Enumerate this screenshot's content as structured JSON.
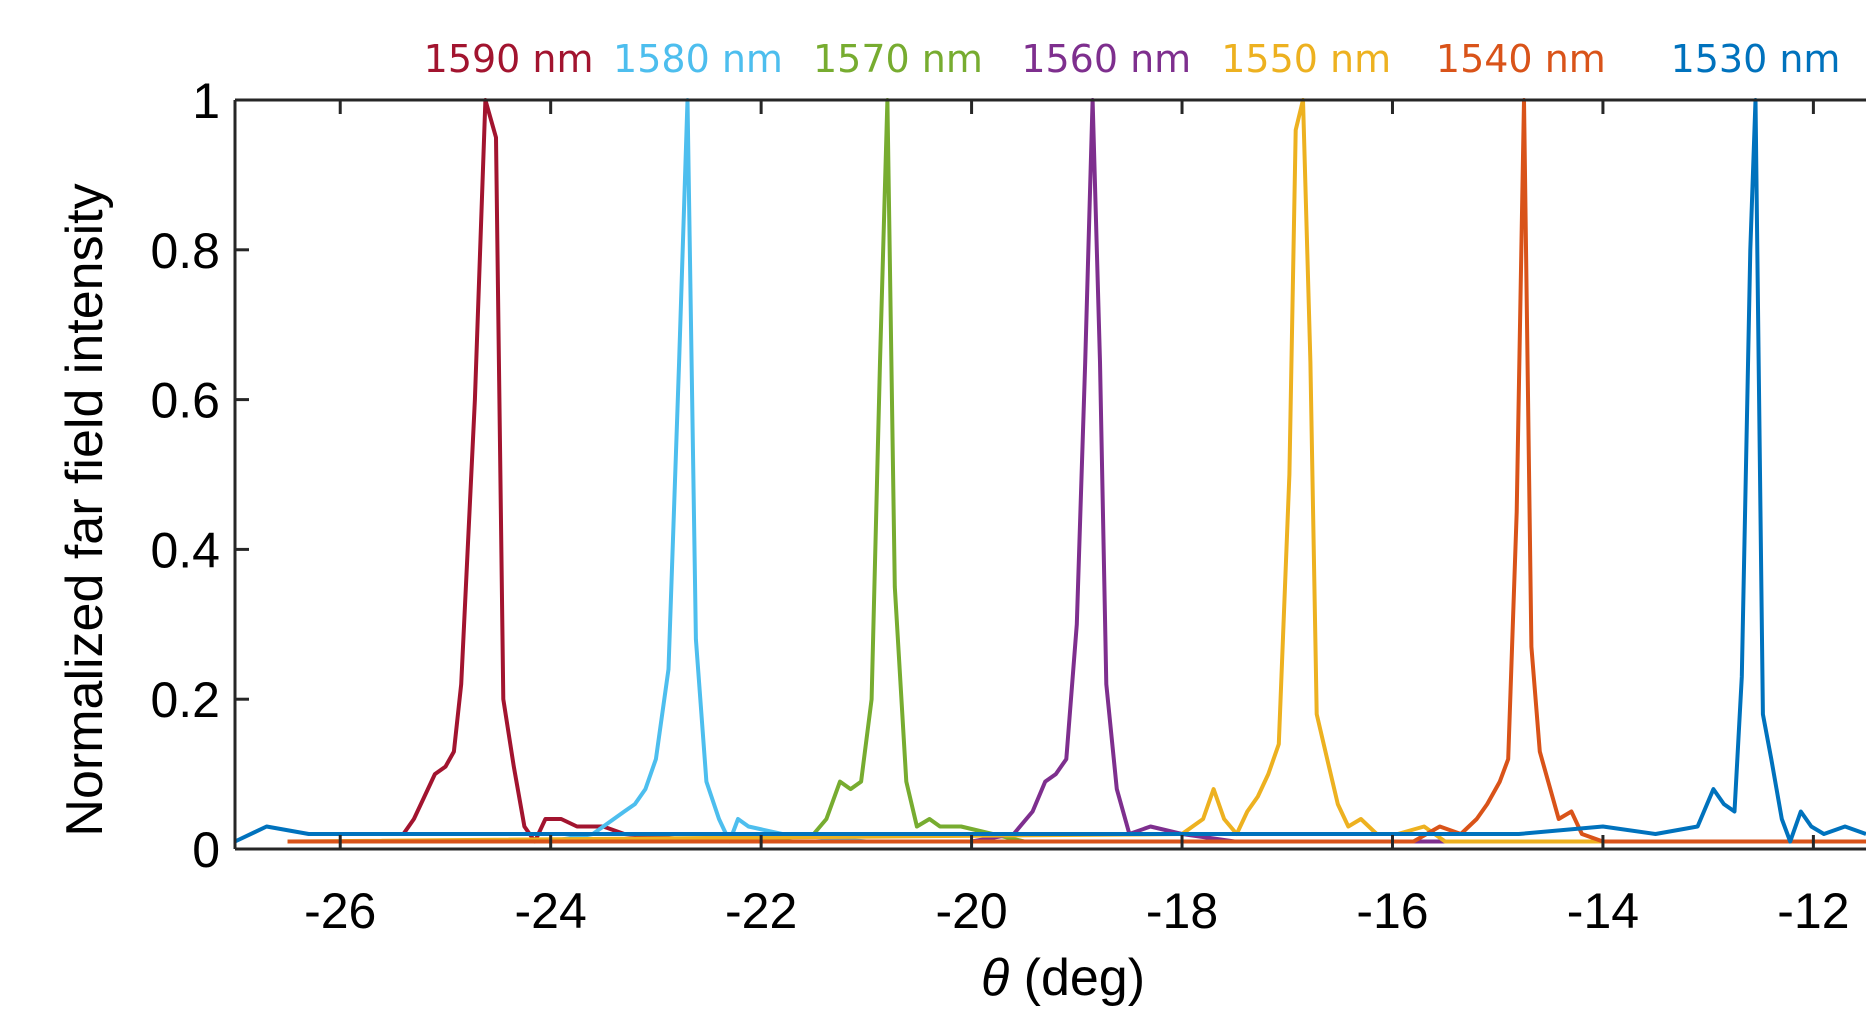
{
  "chart_data": {
    "type": "line",
    "title": "",
    "xlabel_symbol": "θ",
    "xlabel_unit": " (deg)",
    "ylabel": "Normalized far field intensity",
    "xlim": [
      -27,
      -11.5
    ],
    "ylim": [
      0,
      1
    ],
    "xticks": [
      -26,
      -24,
      -22,
      -20,
      -18,
      -16,
      -14,
      -12
    ],
    "xtick_labels": [
      "-26",
      "-24",
      "-22",
      "-20",
      "-18",
      "-16",
      "-14",
      "-12"
    ],
    "yticks": [
      0,
      0.2,
      0.4,
      0.6,
      0.8,
      1
    ],
    "ytick_labels": [
      "0",
      "0.2",
      "0.4",
      "0.6",
      "0.8",
      "1"
    ],
    "grid": false,
    "legend_position": "top",
    "series": [
      {
        "name": "1590 nm",
        "color": "#A2142F",
        "points": [
          [
            -26.0,
            0.02
          ],
          [
            -25.7,
            0.02
          ],
          [
            -25.4,
            0.02
          ],
          [
            -25.3,
            0.04
          ],
          [
            -25.2,
            0.07
          ],
          [
            -25.1,
            0.1
          ],
          [
            -25.0,
            0.11
          ],
          [
            -24.92,
            0.13
          ],
          [
            -24.85,
            0.22
          ],
          [
            -24.72,
            0.6
          ],
          [
            -24.62,
            1.0
          ],
          [
            -24.52,
            0.95
          ],
          [
            -24.45,
            0.2
          ],
          [
            -24.35,
            0.11
          ],
          [
            -24.25,
            0.03
          ],
          [
            -24.15,
            0.01
          ],
          [
            -24.05,
            0.04
          ],
          [
            -23.9,
            0.04
          ],
          [
            -23.75,
            0.03
          ],
          [
            -23.5,
            0.03
          ],
          [
            -23.3,
            0.02
          ],
          [
            -22.5,
            0.01
          ],
          [
            -21.0,
            0.01
          ],
          [
            -19.0,
            0.01
          ],
          [
            -17.0,
            0.01
          ],
          [
            -15.0,
            0.01
          ],
          [
            -13.0,
            0.01
          ],
          [
            -11.5,
            0.01
          ]
        ]
      },
      {
        "name": "1580 nm",
        "color": "#4DBEEE",
        "points": [
          [
            -26.5,
            0.01
          ],
          [
            -24.0,
            0.01
          ],
          [
            -23.6,
            0.02
          ],
          [
            -23.4,
            0.04
          ],
          [
            -23.3,
            0.05
          ],
          [
            -23.2,
            0.06
          ],
          [
            -23.1,
            0.08
          ],
          [
            -23.0,
            0.12
          ],
          [
            -22.88,
            0.24
          ],
          [
            -22.78,
            0.65
          ],
          [
            -22.7,
            1.0
          ],
          [
            -22.62,
            0.28
          ],
          [
            -22.52,
            0.09
          ],
          [
            -22.4,
            0.04
          ],
          [
            -22.3,
            0.01
          ],
          [
            -22.22,
            0.04
          ],
          [
            -22.12,
            0.03
          ],
          [
            -21.8,
            0.02
          ],
          [
            -21.0,
            0.01
          ],
          [
            -19.0,
            0.01
          ],
          [
            -16.0,
            0.01
          ],
          [
            -13.0,
            0.01
          ],
          [
            -11.5,
            0.01
          ]
        ]
      },
      {
        "name": "1570 nm",
        "color": "#77AC30",
        "points": [
          [
            -26.5,
            0.01
          ],
          [
            -22.0,
            0.01
          ],
          [
            -21.5,
            0.02
          ],
          [
            -21.38,
            0.04
          ],
          [
            -21.25,
            0.09
          ],
          [
            -21.15,
            0.08
          ],
          [
            -21.05,
            0.09
          ],
          [
            -20.95,
            0.2
          ],
          [
            -20.87,
            0.65
          ],
          [
            -20.8,
            1.0
          ],
          [
            -20.73,
            0.35
          ],
          [
            -20.62,
            0.09
          ],
          [
            -20.52,
            0.03
          ],
          [
            -20.4,
            0.04
          ],
          [
            -20.3,
            0.03
          ],
          [
            -20.1,
            0.03
          ],
          [
            -19.8,
            0.02
          ],
          [
            -19.5,
            0.01
          ],
          [
            -17.0,
            0.01
          ],
          [
            -14.0,
            0.01
          ],
          [
            -11.5,
            0.01
          ]
        ]
      },
      {
        "name": "1560 nm",
        "color": "#7E2F8E",
        "points": [
          [
            -26.5,
            0.01
          ],
          [
            -20.0,
            0.01
          ],
          [
            -19.6,
            0.02
          ],
          [
            -19.42,
            0.05
          ],
          [
            -19.3,
            0.09
          ],
          [
            -19.2,
            0.1
          ],
          [
            -19.1,
            0.12
          ],
          [
            -19.0,
            0.3
          ],
          [
            -18.92,
            0.65
          ],
          [
            -18.85,
            1.0
          ],
          [
            -18.78,
            0.65
          ],
          [
            -18.72,
            0.22
          ],
          [
            -18.62,
            0.08
          ],
          [
            -18.5,
            0.02
          ],
          [
            -18.3,
            0.03
          ],
          [
            -18.0,
            0.02
          ],
          [
            -17.5,
            0.01
          ],
          [
            -15.0,
            0.01
          ],
          [
            -12.0,
            0.01
          ],
          [
            -11.5,
            0.01
          ]
        ]
      },
      {
        "name": "1550 nm",
        "color": "#EDB120",
        "points": [
          [
            -26.5,
            0.01
          ],
          [
            -18.0,
            0.02
          ],
          [
            -17.8,
            0.04
          ],
          [
            -17.7,
            0.08
          ],
          [
            -17.6,
            0.04
          ],
          [
            -17.48,
            0.02
          ],
          [
            -17.38,
            0.05
          ],
          [
            -17.28,
            0.07
          ],
          [
            -17.18,
            0.1
          ],
          [
            -17.08,
            0.14
          ],
          [
            -16.98,
            0.5
          ],
          [
            -16.92,
            0.96
          ],
          [
            -16.85,
            1.0
          ],
          [
            -16.78,
            0.65
          ],
          [
            -16.72,
            0.18
          ],
          [
            -16.62,
            0.12
          ],
          [
            -16.52,
            0.06
          ],
          [
            -16.42,
            0.03
          ],
          [
            -16.3,
            0.04
          ],
          [
            -16.15,
            0.02
          ],
          [
            -15.95,
            0.02
          ],
          [
            -15.7,
            0.03
          ],
          [
            -15.5,
            0.01
          ],
          [
            -13.0,
            0.01
          ],
          [
            -11.5,
            0.01
          ]
        ]
      },
      {
        "name": "1540 nm",
        "color": "#D95319",
        "points": [
          [
            -26.5,
            0.01
          ],
          [
            -16.0,
            0.01
          ],
          [
            -15.8,
            0.01
          ],
          [
            -15.55,
            0.03
          ],
          [
            -15.35,
            0.02
          ],
          [
            -15.2,
            0.04
          ],
          [
            -15.1,
            0.06
          ],
          [
            -14.98,
            0.09
          ],
          [
            -14.9,
            0.12
          ],
          [
            -14.82,
            0.45
          ],
          [
            -14.75,
            1.0
          ],
          [
            -14.68,
            0.27
          ],
          [
            -14.6,
            0.13
          ],
          [
            -14.52,
            0.09
          ],
          [
            -14.42,
            0.04
          ],
          [
            -14.3,
            0.05
          ],
          [
            -14.2,
            0.02
          ],
          [
            -14.0,
            0.01
          ],
          [
            -11.5,
            0.01
          ]
        ]
      },
      {
        "name": "1530 nm",
        "color": "#0072BD",
        "points": [
          [
            -27.0,
            0.01
          ],
          [
            -26.7,
            0.03
          ],
          [
            -26.3,
            0.02
          ],
          [
            -25.5,
            0.02
          ],
          [
            -24.0,
            0.02
          ],
          [
            -22.0,
            0.02
          ],
          [
            -20.0,
            0.02
          ],
          [
            -18.0,
            0.02
          ],
          [
            -16.0,
            0.02
          ],
          [
            -14.8,
            0.02
          ],
          [
            -14.0,
            0.03
          ],
          [
            -13.5,
            0.02
          ],
          [
            -13.1,
            0.03
          ],
          [
            -12.95,
            0.08
          ],
          [
            -12.85,
            0.06
          ],
          [
            -12.75,
            0.05
          ],
          [
            -12.68,
            0.23
          ],
          [
            -12.6,
            0.8
          ],
          [
            -12.55,
            1.0
          ],
          [
            -12.48,
            0.18
          ],
          [
            -12.4,
            0.12
          ],
          [
            -12.3,
            0.04
          ],
          [
            -12.22,
            0.01
          ],
          [
            -12.12,
            0.05
          ],
          [
            -12.02,
            0.03
          ],
          [
            -11.9,
            0.02
          ],
          [
            -11.7,
            0.03
          ],
          [
            -11.5,
            0.02
          ]
        ]
      }
    ]
  }
}
